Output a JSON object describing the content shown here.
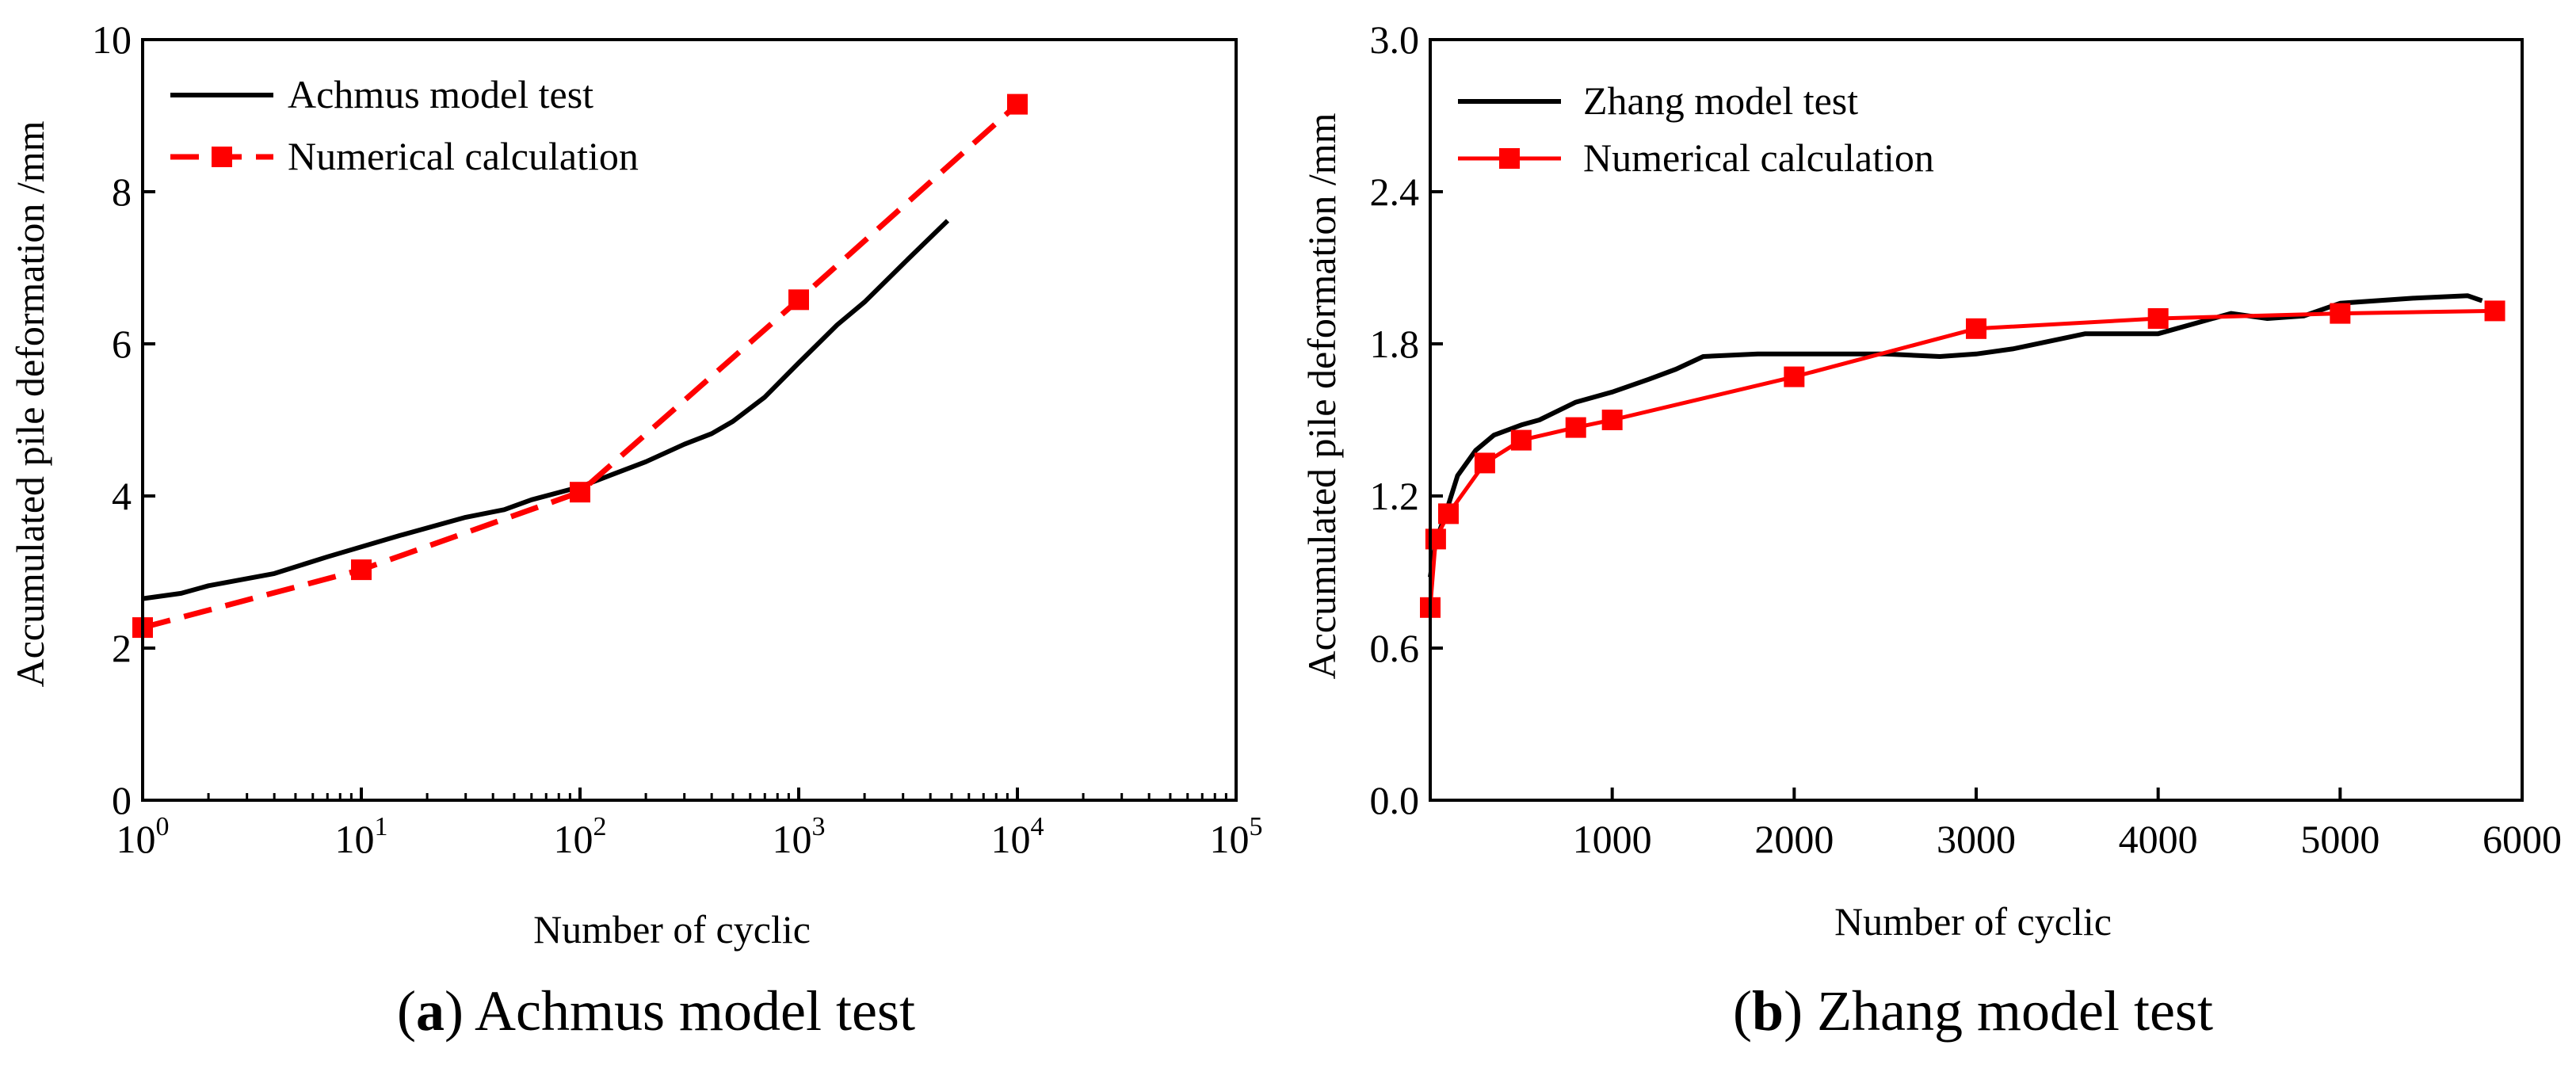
{
  "chart_data": [
    {
      "type": "line",
      "xscale": "log",
      "xlabel": "Number of cyclic",
      "ylabel": "Accumulated pile deformation /mm",
      "xlim": [
        1,
        100000
      ],
      "ylim": [
        0,
        10
      ],
      "x_tick_labels": [
        {
          "base": "10",
          "exp": "0"
        },
        {
          "base": "10",
          "exp": "1"
        },
        {
          "base": "10",
          "exp": "2"
        },
        {
          "base": "10",
          "exp": "3"
        },
        {
          "base": "10",
          "exp": "4"
        },
        {
          "base": "10",
          "exp": "5"
        }
      ],
      "y_ticks": [
        0,
        2,
        4,
        6,
        8,
        10
      ],
      "y_tick_labels": [
        "0",
        "2",
        "4",
        "6",
        "8",
        "10"
      ],
      "legend_position": "top-left",
      "series": [
        {
          "name": "Achmus model test",
          "color": "#000000",
          "style": "solid",
          "marker": "none",
          "x": [
            1,
            1.5,
            2,
            4,
            7,
            15,
            30,
            45,
            60,
            100,
            140,
            200,
            300,
            400,
            500,
            700,
            1000,
            1500,
            2000,
            3000,
            4000,
            4800
          ],
          "y": [
            2.65,
            2.72,
            2.82,
            2.98,
            3.2,
            3.48,
            3.72,
            3.82,
            3.95,
            4.12,
            4.28,
            4.45,
            4.68,
            4.82,
            4.98,
            5.3,
            5.75,
            6.25,
            6.55,
            7.05,
            7.4,
            7.62
          ]
        },
        {
          "name": "Numerical calculation",
          "color": "#ff0000",
          "style": "dashed",
          "marker": "square",
          "x": [
            1,
            10,
            100,
            1000,
            10000
          ],
          "y": [
            2.27,
            3.03,
            4.05,
            6.58,
            9.15
          ]
        }
      ],
      "caption": {
        "letter": "a",
        "text": " Achmus model test"
      }
    },
    {
      "type": "line",
      "xscale": "linear",
      "xlabel": "Number of cyclic",
      "ylabel": "Accumulated pile deformation /mm",
      "xlim": [
        0,
        6000
      ],
      "ylim": [
        0,
        3.0
      ],
      "x_ticks": [
        1000,
        2000,
        3000,
        4000,
        5000,
        6000
      ],
      "x_tick_labels": [
        "1000",
        "2000",
        "3000",
        "4000",
        "5000",
        "6000"
      ],
      "y_ticks": [
        0,
        0.6,
        1.2,
        1.8,
        2.4,
        3.0
      ],
      "y_tick_labels": [
        "0.0",
        "0.6",
        "1.2",
        "1.8",
        "2.4",
        "3.0"
      ],
      "legend_position": "top-left",
      "series": [
        {
          "name": "Zhang model test",
          "color": "#000000",
          "style": "solid",
          "marker": "none",
          "x": [
            0,
            30,
            80,
            150,
            250,
            350,
            500,
            600,
            800,
            1000,
            1200,
            1350,
            1500,
            1800,
            2000,
            2500,
            2800,
            3000,
            3200,
            3400,
            3600,
            4000,
            4100,
            4400,
            4600,
            4800,
            5000,
            5400,
            5700,
            5780
          ],
          "y": [
            0.88,
            1.02,
            1.12,
            1.28,
            1.38,
            1.44,
            1.48,
            1.5,
            1.57,
            1.61,
            1.66,
            1.7,
            1.75,
            1.76,
            1.76,
            1.76,
            1.75,
            1.76,
            1.78,
            1.81,
            1.84,
            1.84,
            1.86,
            1.92,
            1.9,
            1.91,
            1.96,
            1.98,
            1.99,
            1.97
          ]
        },
        {
          "name": "Numerical calculation",
          "color": "#ff0000",
          "style": "solid",
          "marker": "square",
          "x": [
            0,
            30,
            100,
            300,
            500,
            800,
            1000,
            2000,
            3000,
            4000,
            5000,
            5850
          ],
          "y": [
            0.76,
            1.03,
            1.13,
            1.33,
            1.42,
            1.47,
            1.5,
            1.67,
            1.86,
            1.9,
            1.92,
            1.93
          ]
        }
      ],
      "caption": {
        "letter": "b",
        "text": " Zhang model test"
      }
    }
  ]
}
